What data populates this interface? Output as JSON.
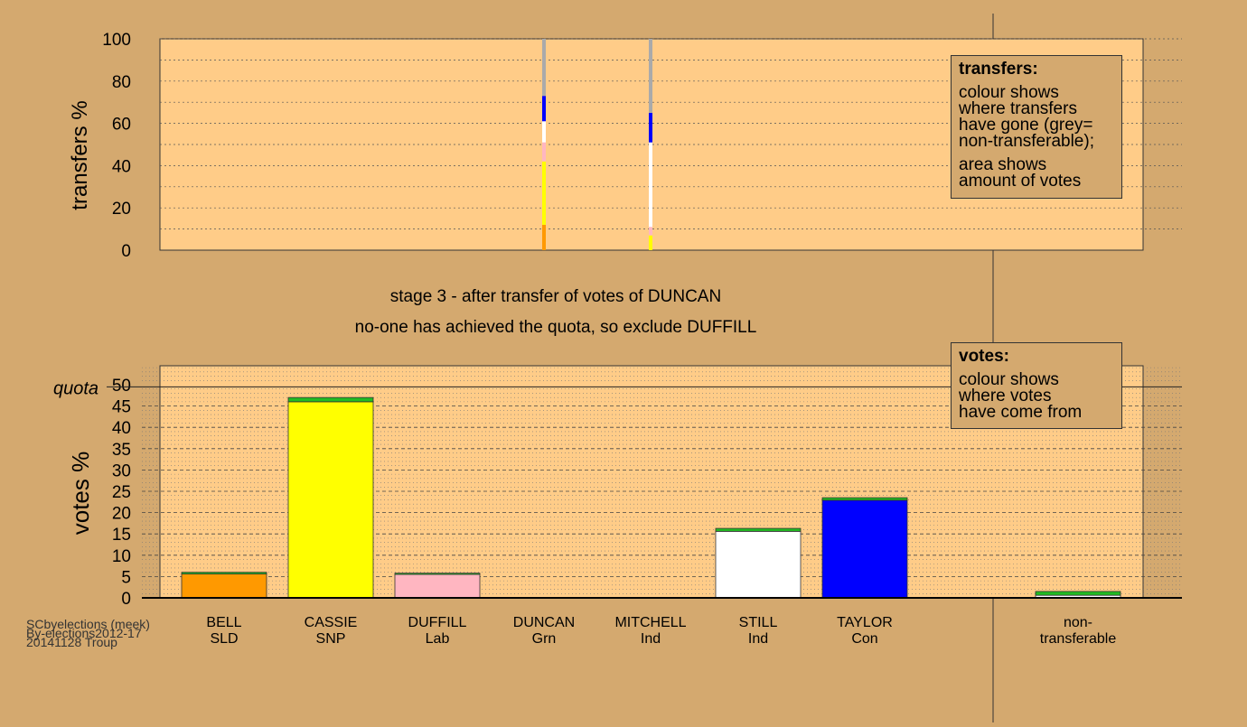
{
  "stage_line": "stage 3 - after transfer of votes of DUNCAN",
  "status_line": "no-one has achieved the quota, so exclude DUFFILL",
  "credits": [
    "SCbyelections (meek)",
    "By-elections2012-17",
    "20141128 Troup"
  ],
  "legend_transfers": {
    "title": "transfers:",
    "lines": [
      "colour shows",
      "where transfers",
      "have gone (grey=",
      "non-transferable);",
      "",
      "area shows",
      "amount of votes"
    ]
  },
  "legend_votes": {
    "title": "votes:",
    "lines": [
      "colour shows",
      "where votes",
      "have come from"
    ]
  },
  "chart_data": [
    {
      "type": "bar",
      "ylabel": "transfers %",
      "ylim": [
        0,
        100
      ],
      "yticks": [
        0,
        20,
        40,
        60,
        80,
        100
      ],
      "grid": true,
      "columns": [
        {
          "candidate": "DUNCAN",
          "segments": [
            {
              "party": "SLD",
              "color": "#ff9900",
              "from": 0,
              "to": 12
            },
            {
              "party": "SNP",
              "color": "#ffff00",
              "from": 12,
              "to": 42
            },
            {
              "party": "Lab",
              "color": "#ffb6c1",
              "from": 42,
              "to": 51
            },
            {
              "party": "Ind",
              "color": "#ffffff",
              "from": 51,
              "to": 61
            },
            {
              "party": "Con",
              "color": "#0000ff",
              "from": 61,
              "to": 73
            },
            {
              "party": "non-transferable",
              "color": "#aaaaaa",
              "from": 73,
              "to": 100
            }
          ]
        },
        {
          "candidate": "MITCHELL",
          "segments": [
            {
              "party": "SNP",
              "color": "#ffff00",
              "from": 0,
              "to": 7
            },
            {
              "party": "Lab",
              "color": "#ffb6c1",
              "from": 7,
              "to": 11
            },
            {
              "party": "Ind",
              "color": "#ffffff",
              "from": 11,
              "to": 51
            },
            {
              "party": "Con",
              "color": "#0000ff",
              "from": 51,
              "to": 65
            },
            {
              "party": "non-transferable",
              "color": "#aaaaaa",
              "from": 65,
              "to": 100
            }
          ]
        }
      ]
    },
    {
      "type": "bar",
      "ylabel": "votes %",
      "ylim": [
        0,
        50
      ],
      "yticks": [
        0,
        5,
        10,
        15,
        20,
        25,
        30,
        35,
        40,
        45,
        50
      ],
      "quota_label": "quota",
      "quota": 49.5,
      "grid": true,
      "categories": [
        {
          "name": "BELL",
          "party": "SLD"
        },
        {
          "name": "CASSIE",
          "party": "SNP"
        },
        {
          "name": "DUFFILL",
          "party": "Lab"
        },
        {
          "name": "DUNCAN",
          "party": "Grn"
        },
        {
          "name": "MITCHELL",
          "party": "Ind"
        },
        {
          "name": "STILL",
          "party": "Ind"
        },
        {
          "name": "TAYLOR",
          "party": "Con"
        },
        {
          "name": "non-",
          "party": "transferable"
        }
      ],
      "series": [
        {
          "color": "#ff9900",
          "values": [
            5.6,
            0,
            0,
            0,
            0,
            0,
            0,
            0
          ]
        },
        {
          "color": "#ffff00",
          "values": [
            0,
            46.0,
            0,
            0,
            0,
            0,
            0,
            0
          ]
        },
        {
          "color": "#ffb6c1",
          "values": [
            0,
            0,
            5.5,
            0,
            0,
            0,
            0,
            0
          ]
        },
        {
          "color": "#ffffff",
          "values": [
            0,
            0,
            0,
            0,
            0,
            15.6,
            0,
            0.6
          ]
        },
        {
          "color": "#0000ff",
          "values": [
            0,
            0,
            0,
            0,
            0,
            0,
            22.9,
            0
          ]
        },
        {
          "color": "#22bb22",
          "values": [
            0.4,
            1.0,
            0.3,
            0,
            0,
            0.7,
            0.6,
            0.9
          ]
        }
      ]
    }
  ]
}
